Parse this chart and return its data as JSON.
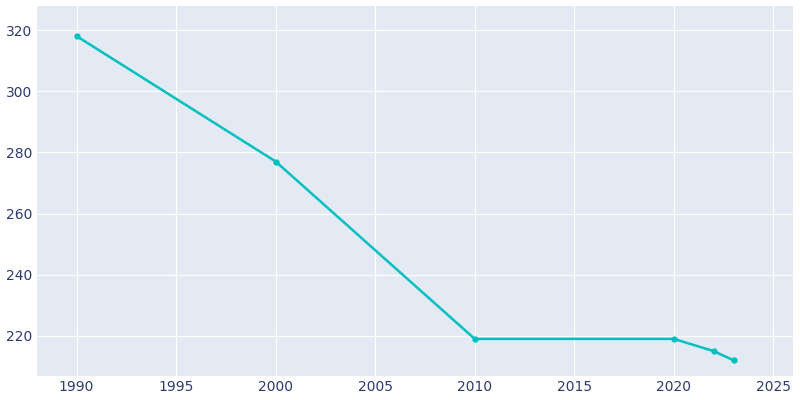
{
  "years": [
    1990,
    2000,
    2010,
    2020,
    2022,
    2023
  ],
  "population": [
    318,
    277,
    219,
    219,
    215,
    212
  ],
  "line_color": "#00BFBF",
  "marker_color": "#00BFBF",
  "figure_background": "#FFFFFF",
  "axes_background": "#E3EAF3",
  "grid_color": "#FFFFFF",
  "tick_color": "#2D3A6B",
  "xlim": [
    1988,
    2026
  ],
  "ylim": [
    207,
    328
  ],
  "xticks": [
    1990,
    1995,
    2000,
    2005,
    2010,
    2015,
    2020,
    2025
  ],
  "yticks": [
    220,
    240,
    260,
    280,
    300,
    320
  ],
  "line_width": 1.8,
  "marker_size": 3.5
}
